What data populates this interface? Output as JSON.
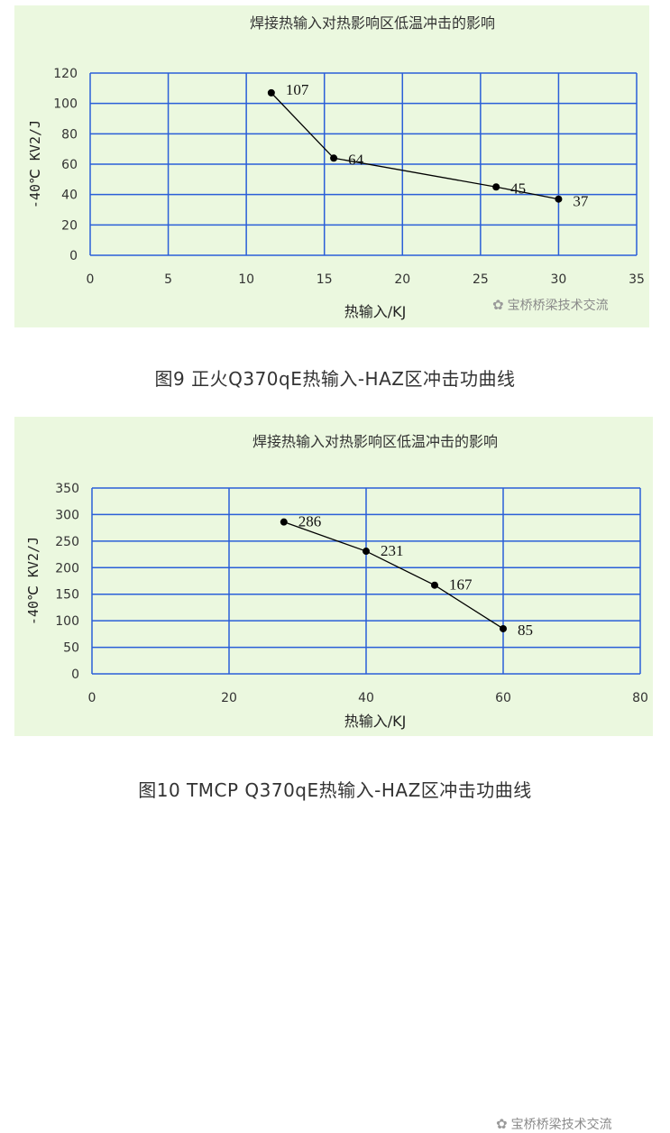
{
  "charts": [
    {
      "watermark": "宝桥桥梁技术交流",
      "caption": "图9   正火Q370qE热输入-HAZ区冲击功曲线",
      "chart_data": {
        "type": "scatter",
        "title": "焊接热输入对热影响区低温冲击的影响",
        "xlabel": "热输入/KJ",
        "ylabel": "-40℃ KV2/J",
        "xlim": [
          0,
          35
        ],
        "ylim": [
          0,
          120
        ],
        "xticks": [
          0,
          5,
          10,
          15,
          20,
          25,
          30,
          35
        ],
        "yticks": [
          0,
          20,
          40,
          60,
          80,
          100,
          120
        ],
        "grid": true,
        "points": [
          {
            "x": 11.6,
            "y": 107,
            "label": "107"
          },
          {
            "x": 15.6,
            "y": 64,
            "label": "64"
          },
          {
            "x": 26,
            "y": 45,
            "label": "45"
          },
          {
            "x": 30,
            "y": 37,
            "label": "37"
          }
        ]
      }
    },
    {
      "watermark": "宝桥桥梁技术交流",
      "caption": "图10  TMCP Q370qE热输入-HAZ区冲击功曲线",
      "chart_data": {
        "type": "scatter",
        "title": "焊接热输入对热影响区低温冲击的影响",
        "xlabel": "热输入/KJ",
        "ylabel": "-40℃ KV2/J",
        "xlim": [
          0,
          80
        ],
        "ylim": [
          0,
          350
        ],
        "xticks": [
          0,
          20,
          40,
          60,
          80
        ],
        "yticks": [
          0,
          50,
          100,
          150,
          200,
          250,
          300,
          350
        ],
        "grid": true,
        "points": [
          {
            "x": 28,
            "y": 286,
            "label": "286"
          },
          {
            "x": 40,
            "y": 231,
            "label": "231"
          },
          {
            "x": 50,
            "y": 167,
            "label": "167"
          },
          {
            "x": 60,
            "y": 85,
            "label": "85"
          }
        ]
      }
    }
  ],
  "colors": {
    "panel_bg": "#ebf8df",
    "grid": "#2a5fd8",
    "marker": "#000000",
    "text": "#222222"
  }
}
